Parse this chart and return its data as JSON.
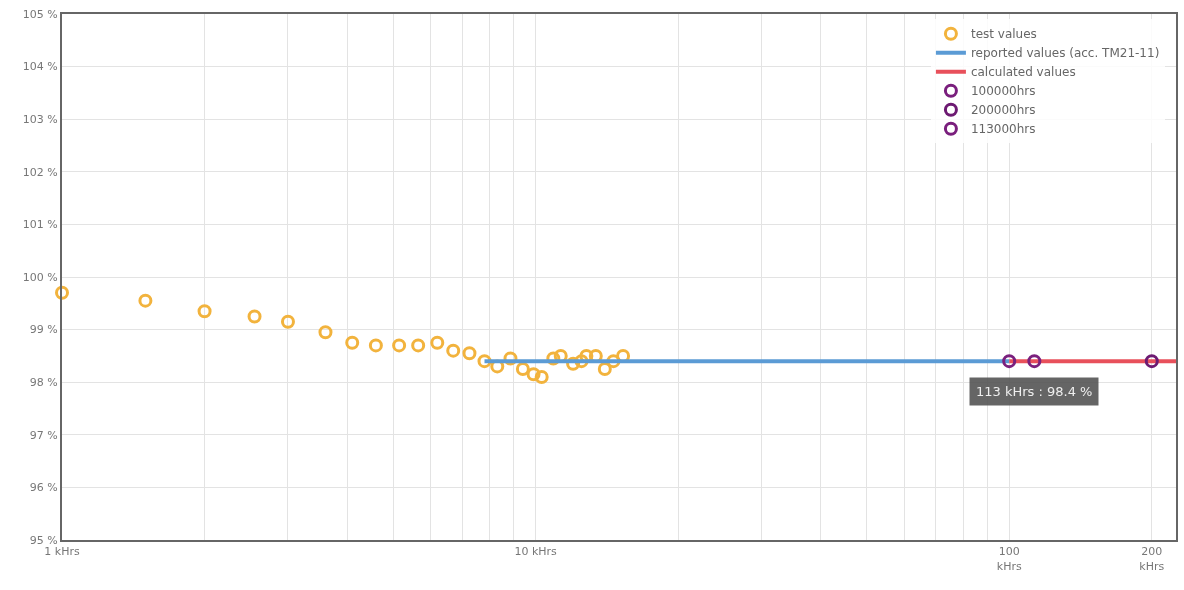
{
  "chart_data": {
    "type": "scatter",
    "log": "x",
    "grid": true,
    "legend": "top right",
    "xlim": [
      1,
      225
    ],
    "ylim": [
      95,
      105
    ],
    "xticks": [
      {
        "value": 1,
        "label": "1 kHrs"
      },
      {
        "value": 2,
        "label": null
      },
      {
        "value": 3,
        "label": null
      },
      {
        "value": 4,
        "label": null
      },
      {
        "value": 5,
        "label": null
      },
      {
        "value": 6,
        "label": null
      },
      {
        "value": 7,
        "label": null
      },
      {
        "value": 8,
        "label": null
      },
      {
        "value": 9,
        "label": null
      },
      {
        "value": 10,
        "label": "10 kHrs"
      },
      {
        "value": 20,
        "label": null
      },
      {
        "value": 30,
        "label": null
      },
      {
        "value": 40,
        "label": null
      },
      {
        "value": 50,
        "label": null
      },
      {
        "value": 60,
        "label": null
      },
      {
        "value": 70,
        "label": null
      },
      {
        "value": 80,
        "label": null
      },
      {
        "value": 90,
        "label": null
      },
      {
        "value": 100,
        "label": "100\nkHrs"
      },
      {
        "value": 200,
        "label": "200\nkHrs"
      }
    ],
    "yticks": [
      {
        "value": 95,
        "label": "95 %"
      },
      {
        "value": 96,
        "label": "96 %"
      },
      {
        "value": 97,
        "label": "97 %"
      },
      {
        "value": 98,
        "label": "98 %"
      },
      {
        "value": 99,
        "label": "99 %"
      },
      {
        "value": 100,
        "label": "100 %"
      },
      {
        "value": 101,
        "label": "101 %"
      },
      {
        "value": 102,
        "label": "102 %"
      },
      {
        "value": 103,
        "label": "103 %"
      },
      {
        "value": 104,
        "label": "104 %"
      },
      {
        "value": 105,
        "label": "105 %"
      }
    ],
    "series": [
      {
        "name": "test values",
        "marker": "circle",
        "color": "#f2b33d",
        "x": [
          1.0,
          1.5,
          2.0,
          2.55,
          3.0,
          3.6,
          4.1,
          4.6,
          5.15,
          5.65,
          6.2,
          6.7,
          7.25,
          7.8,
          8.3,
          8.85,
          9.4,
          9.9,
          10.3,
          10.9,
          11.3,
          12.0,
          12.5,
          12.8,
          13.4,
          14.0,
          14.6,
          15.3
        ],
        "values": [
          99.7,
          99.55,
          99.35,
          99.25,
          99.15,
          98.95,
          98.75,
          98.7,
          98.7,
          98.7,
          98.75,
          98.6,
          98.55,
          98.4,
          98.3,
          98.45,
          98.25,
          98.15,
          98.1,
          98.45,
          98.5,
          98.35,
          98.4,
          98.5,
          98.5,
          98.25,
          98.4,
          98.5
        ]
      },
      {
        "name": "reported values (acc. TM21-11)",
        "type": "line",
        "marker": "none",
        "color": "#5b9bd5",
        "x": [
          7.8,
          100
        ],
        "values": [
          98.4,
          98.4
        ]
      },
      {
        "name": "calculated values",
        "type": "line",
        "marker": "none",
        "color": "#e8505b",
        "x": [
          100,
          225
        ],
        "values": [
          98.4,
          98.4
        ]
      },
      {
        "name": "100000hrs",
        "marker": "circle",
        "color": "#7a1f7d",
        "x": [
          100
        ],
        "values": [
          98.4
        ]
      },
      {
        "name": "200000hrs",
        "marker": "circle",
        "color": "#6d1a72",
        "x": [
          200
        ],
        "values": [
          98.4
        ]
      },
      {
        "name": "113000hrs",
        "marker": "circle",
        "color": "#7a1f7d",
        "x": [
          113
        ],
        "values": [
          98.4
        ]
      }
    ],
    "annotations": [
      {
        "text": "113 kHrs : 98.4 %",
        "x": 113,
        "y": 98.4
      }
    ]
  }
}
